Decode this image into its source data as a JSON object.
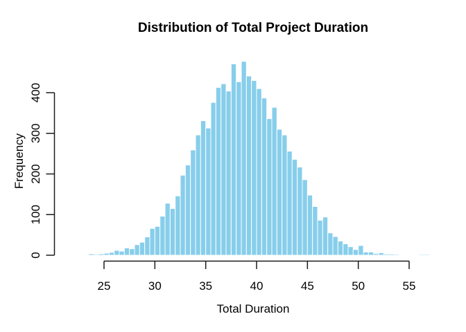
{
  "chart_data": {
    "type": "bar",
    "subtype": "histogram",
    "title": "Distribution of Total Project Duration",
    "xlabel": "Total Duration",
    "ylabel": "Frequency",
    "bin_width": 0.5,
    "first_bin_start": 23.5,
    "frequencies": [
      3,
      1,
      3,
      5,
      7,
      12,
      10,
      18,
      16,
      26,
      32,
      45,
      66,
      71,
      96,
      128,
      115,
      146,
      197,
      222,
      259,
      296,
      331,
      313,
      376,
      413,
      422,
      404,
      471,
      427,
      477,
      441,
      430,
      410,
      387,
      336,
      364,
      310,
      296,
      256,
      236,
      217,
      186,
      148,
      120,
      86,
      94,
      55,
      46,
      35,
      28,
      21,
      14,
      24,
      8,
      8,
      4,
      6,
      2,
      2,
      1,
      0,
      0,
      0,
      0,
      1,
      1
    ],
    "x_ticks": [
      25,
      30,
      35,
      40,
      45,
      50,
      55
    ],
    "y_ticks": [
      0,
      100,
      200,
      300,
      400
    ],
    "x_axis_range": [
      25,
      55
    ],
    "y_axis_range": [
      0,
      400
    ],
    "grid": false,
    "legend": "none",
    "colors": {
      "bar_fill": "#87CEEB",
      "bar_fill_faint": "#BCE1F3",
      "bar_stroke": "#FFFFFF",
      "axis": "#1A1A1A",
      "text": "#000000",
      "background": "#FFFFFF"
    }
  }
}
